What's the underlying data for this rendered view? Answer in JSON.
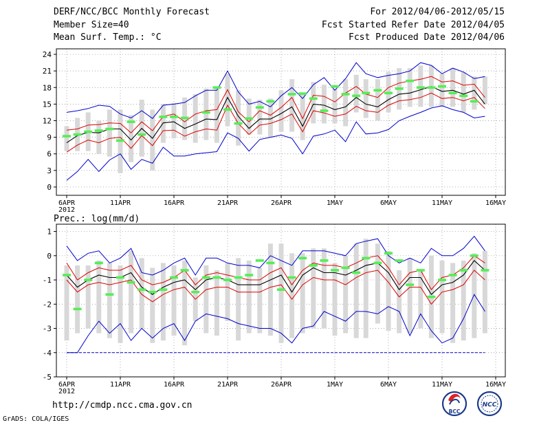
{
  "header": {
    "title": "DERF/NCC/BCC Monthly Forecast",
    "member_size": "Member Size=40",
    "variable_top": "Mean Surf. Temp.: °C",
    "for_range": "For 2012/04/06-2012/05/15",
    "fcst_started": "Fcst Started Refer Date 2012/04/05",
    "fcst_produced": "Fcst Produced Date 2012/04/06"
  },
  "footer": {
    "url": "http://cmdp.ncc.cma.gov.cn",
    "grads_credit": "GrADS: COLA/IGES",
    "logo_left_text": "BCC",
    "logo_right_text": "NCC"
  },
  "colors": {
    "outer": "#0000cc",
    "band": "#dd0000",
    "mean": "#000000",
    "obs": "#55ee55",
    "box": "#d8d8d8",
    "grid": "#888888"
  },
  "chart_data": [
    {
      "type": "line",
      "title": "Mean Surf. Temp.: °C",
      "ylabel": "°C",
      "xlabel": "",
      "x_tick_labels": [
        "6APR",
        "11APR",
        "16APR",
        "21APR",
        "26APR",
        "1MAY",
        "6MAY",
        "11MAY",
        "16MAY"
      ],
      "x_year_label": "2012",
      "x_tick_days": [
        0,
        5,
        10,
        15,
        20,
        25,
        30,
        35,
        40
      ],
      "xlim": [
        0,
        40
      ],
      "ylim": [
        -1.5,
        25
      ],
      "y_ticks": [
        0,
        3,
        6,
        9,
        12,
        15,
        18,
        21,
        24
      ],
      "days": [
        0,
        1,
        2,
        3,
        4,
        5,
        6,
        7,
        8,
        9,
        10,
        11,
        12,
        13,
        14,
        15,
        16,
        17,
        18,
        19,
        20,
        21,
        22,
        23,
        24,
        25,
        26,
        27,
        27.9,
        29,
        30,
        31,
        32,
        33,
        34,
        35,
        36,
        37,
        38,
        39
      ],
      "series": [
        {
          "name": "max",
          "values": [
            13.5,
            13.8,
            14.2,
            14.8,
            14.6,
            13.2,
            12.5,
            13.8,
            12.4,
            14.8,
            15.0,
            15.3,
            16.5,
            17.5,
            17.5,
            21.0,
            17.2,
            15.0,
            15.5,
            14.5,
            16.5,
            18.0,
            16.0,
            18.5,
            19.8,
            17.5,
            19.6,
            22.5,
            20.5,
            19.8,
            20.2,
            20.5,
            21.0,
            22.5,
            22.0,
            20.5,
            21.5,
            20.8,
            19.6,
            20.0
          ]
        },
        {
          "name": "upper",
          "values": [
            10.3,
            10.5,
            11.2,
            11.3,
            11.6,
            11.5,
            9.8,
            11.8,
            10.2,
            12.8,
            13.2,
            11.8,
            13.2,
            13.8,
            14.0,
            17.6,
            13.6,
            11.8,
            13.8,
            13.0,
            14.4,
            16.2,
            12.4,
            16.6,
            16.4,
            15.4,
            17.0,
            18.2,
            16.8,
            16.2,
            18.0,
            18.8,
            19.2,
            19.5,
            20.0,
            19.0,
            19.2,
            18.4,
            18.6,
            16.2
          ]
        },
        {
          "name": "mean",
          "values": [
            8.0,
            9.3,
            9.9,
            9.8,
            10.5,
            10.5,
            8.5,
            10.6,
            8.8,
            11.6,
            11.8,
            10.6,
            11.4,
            12.3,
            12.2,
            16.2,
            12.8,
            10.6,
            12.3,
            12.3,
            13.3,
            14.5,
            11.0,
            15.0,
            14.8,
            14.0,
            14.5,
            16.2,
            15.0,
            14.5,
            15.8,
            16.8,
            17.0,
            17.6,
            18.2,
            17.3,
            17.5,
            16.8,
            17.5,
            15.0
          ]
        },
        {
          "name": "lower",
          "values": [
            6.3,
            7.6,
            8.5,
            8.0,
            8.8,
            9.0,
            7.0,
            9.3,
            7.5,
            10.2,
            10.3,
            9.2,
            10.0,
            10.5,
            10.3,
            14.8,
            11.5,
            9.5,
            11.2,
            11.5,
            12.2,
            13.2,
            10.0,
            13.8,
            13.4,
            12.8,
            13.2,
            14.6,
            13.8,
            13.5,
            14.8,
            15.6,
            15.8,
            16.2,
            17.0,
            16.0,
            16.2,
            15.6,
            16.2,
            14.2
          ]
        },
        {
          "name": "min",
          "values": [
            1.2,
            2.8,
            5.0,
            2.8,
            4.9,
            6.0,
            3.2,
            5.0,
            4.3,
            7.2,
            5.6,
            5.6,
            6.0,
            6.2,
            6.4,
            9.8,
            8.8,
            6.5,
            8.6,
            9.0,
            9.4,
            8.8,
            6.0,
            9.2,
            9.6,
            10.3,
            8.2,
            11.8,
            9.6,
            9.8,
            10.4,
            12.0,
            12.8,
            13.5,
            14.3,
            14.7,
            14.0,
            13.5,
            12.5,
            12.8
          ]
        },
        {
          "name": "box_high",
          "values": [
            11.0,
            12.5,
            13.5,
            12.0,
            14.0,
            14.0,
            13.0,
            15.8,
            14.0,
            15.0,
            15.2,
            16.2,
            16.8,
            17.8,
            18.0,
            20.5,
            17.5,
            16.0,
            15.8,
            16.0,
            17.5,
            19.5,
            17.0,
            19.0,
            18.5,
            17.8,
            19.5,
            20.3,
            19.5,
            19.5,
            20.8,
            21.5,
            21.5,
            22.0,
            22.0,
            20.5,
            21.5,
            20.8,
            20.0,
            20.0
          ]
        },
        {
          "name": "box_low",
          "values": [
            6.5,
            6.5,
            6.5,
            6.0,
            5.5,
            2.5,
            4.5,
            5.5,
            3.0,
            8.0,
            8.8,
            8.5,
            8.0,
            8.5,
            8.0,
            11.0,
            7.5,
            9.5,
            9.5,
            9.0,
            10.0,
            10.0,
            8.5,
            11.5,
            11.5,
            11.5,
            11.0,
            13.5,
            12.5,
            12.0,
            13.5,
            14.0,
            14.5,
            14.5,
            14.5,
            14.5,
            14.5,
            13.5,
            14.0,
            15.0
          ]
        },
        {
          "name": "observed",
          "values": [
            9.2,
            9.5,
            10.0,
            10.2,
            10.5,
            8.4,
            11.8,
            9.5,
            null,
            12.7,
            12.7,
            12.5,
            null,
            13.5,
            18.0,
            14.0,
            11.5,
            12.4,
            14.4,
            15.5,
            null,
            16.8,
            16.9,
            16.0,
            13.8,
            18.2,
            16.8,
            16.5,
            17.0,
            17.5,
            17.0,
            17.8,
            19.2,
            18.0,
            18.0,
            18.2,
            17.0,
            16.5,
            15.5,
            null
          ]
        }
      ]
    },
    {
      "type": "line",
      "title": "Prec.: log(mm/d)",
      "ylabel": "log(mm/d)",
      "xlabel": "",
      "x_tick_labels": [
        "6APR",
        "11APR",
        "16APR",
        "21APR",
        "26APR",
        "1MAY",
        "6MAY",
        "11MAY",
        "16MAY"
      ],
      "x_year_label": "2012",
      "x_tick_days": [
        0,
        5,
        10,
        15,
        20,
        25,
        30,
        35,
        40
      ],
      "xlim": [
        0,
        40
      ],
      "ylim": [
        -5,
        1.3
      ],
      "y_ticks": [
        -5,
        -4,
        -3,
        -2,
        -1,
        0,
        1
      ],
      "days": [
        0,
        1,
        2,
        3,
        4,
        5,
        6,
        7,
        8,
        9,
        10,
        11,
        12,
        13,
        14,
        15,
        16,
        17,
        18,
        19,
        20,
        21,
        22,
        23,
        24,
        25,
        26,
        27,
        27.9,
        29,
        30,
        31,
        32,
        33,
        34,
        35,
        36,
        37,
        38,
        39
      ],
      "series": [
        {
          "name": "max",
          "values": [
            0.4,
            -0.2,
            0.1,
            0.2,
            -0.3,
            -0.1,
            0.3,
            -0.7,
            -0.8,
            -0.6,
            -0.3,
            -0.1,
            -0.8,
            -0.1,
            -0.1,
            -0.3,
            -0.4,
            -0.4,
            -0.5,
            0.0,
            -0.2,
            -0.4,
            0.2,
            0.2,
            0.2,
            0.1,
            0.0,
            0.5,
            0.6,
            0.7,
            0.0,
            -0.3,
            -0.1,
            -0.3,
            0.3,
            0.0,
            0.0,
            0.3,
            0.8,
            0.2
          ]
        },
        {
          "name": "upper",
          "values": [
            -0.3,
            -1.0,
            -0.7,
            -0.5,
            -0.6,
            -0.6,
            -0.4,
            -1.0,
            -1.2,
            -1.1,
            -0.9,
            -0.6,
            -1.2,
            -0.8,
            -0.7,
            -0.8,
            -0.9,
            -1.0,
            -1.0,
            -0.7,
            -0.5,
            -1.2,
            -0.6,
            -0.3,
            -0.4,
            -0.4,
            -0.5,
            -0.3,
            -0.1,
            0.0,
            -0.5,
            -1.2,
            -0.7,
            -0.6,
            -1.4,
            -0.9,
            -0.8,
            -0.5,
            0.0,
            -0.3
          ]
        },
        {
          "name": "mean",
          "values": [
            -0.8,
            -1.3,
            -1.0,
            -0.8,
            -0.9,
            -0.9,
            -0.7,
            -1.3,
            -1.6,
            -1.3,
            -1.1,
            -1.0,
            -1.4,
            -1.0,
            -0.9,
            -1.0,
            -1.2,
            -1.2,
            -1.2,
            -1.0,
            -0.8,
            -1.5,
            -0.8,
            -0.5,
            -0.7,
            -0.7,
            -0.8,
            -0.6,
            -0.4,
            -0.3,
            -0.7,
            -1.4,
            -0.9,
            -0.9,
            -1.6,
            -1.2,
            -1.1,
            -0.8,
            -0.2,
            -0.6
          ]
        },
        {
          "name": "lower",
          "values": [
            -1.0,
            -1.5,
            -1.2,
            -1.1,
            -1.2,
            -1.1,
            -1.0,
            -1.6,
            -1.9,
            -1.6,
            -1.4,
            -1.3,
            -1.8,
            -1.4,
            -1.3,
            -1.3,
            -1.5,
            -1.5,
            -1.5,
            -1.3,
            -1.2,
            -1.8,
            -1.2,
            -0.9,
            -1.0,
            -1.0,
            -1.2,
            -0.9,
            -0.7,
            -0.6,
            -1.1,
            -1.7,
            -1.3,
            -1.3,
            -2.0,
            -1.5,
            -1.4,
            -1.2,
            -0.6,
            -1.0
          ]
        },
        {
          "name": "min",
          "values": [
            -4.0,
            -4.0,
            -3.3,
            -2.7,
            -3.2,
            -2.8,
            -3.5,
            -3.0,
            -3.4,
            -3.0,
            -2.8,
            -3.5,
            -2.7,
            -2.4,
            -2.5,
            -2.6,
            -2.8,
            -2.9,
            -3.0,
            -3.0,
            -3.2,
            -3.6,
            -3.0,
            -2.9,
            -2.3,
            -2.5,
            -2.7,
            -2.3,
            -2.3,
            -2.4,
            -2.1,
            -2.3,
            -3.3,
            -2.4,
            -3.1,
            -3.6,
            -3.4,
            -2.6,
            -1.6,
            -2.3
          ]
        },
        {
          "name": "box_high",
          "values": [
            -0.4,
            -0.4,
            -0.4,
            -0.2,
            -0.3,
            -0.4,
            0.2,
            -0.1,
            -0.5,
            -0.3,
            -0.4,
            -0.2,
            -0.9,
            -0.4,
            -0.6,
            -0.3,
            -0.1,
            -0.2,
            -0.5,
            0.5,
            0.5,
            0.1,
            0.1,
            0.3,
            0.3,
            -0.3,
            0.0,
            0.5,
            0.7,
            0.5,
            0.2,
            -0.6,
            -0.1,
            -0.6,
            0.0,
            -0.2,
            -0.3,
            -0.2,
            0.1,
            0.2
          ]
        },
        {
          "name": "box_low",
          "values": [
            -3.5,
            -3.2,
            -3.0,
            -3.2,
            -3.4,
            -3.6,
            -3.2,
            -3.0,
            -3.6,
            -3.5,
            -3.3,
            -3.7,
            -2.7,
            -3.2,
            -3.3,
            -2.7,
            -3.5,
            -3.2,
            -3.2,
            -3.3,
            -3.6,
            -3.4,
            -3.2,
            -3.0,
            -3.0,
            -3.3,
            -3.2,
            -3.4,
            -3.4,
            -2.8,
            -3.1,
            -3.2,
            -3.2,
            -3.0,
            -3.4,
            -3.2,
            -3.6,
            -3.5,
            -3.4,
            -3.2
          ]
        },
        {
          "name": "observed",
          "values": [
            -0.8,
            -2.2,
            -1.0,
            -0.3,
            -1.6,
            -0.9,
            -1.1,
            -1.4,
            -1.5,
            -1.4,
            -0.9,
            -0.6,
            -1.5,
            -0.9,
            -0.9,
            -1.0,
            -0.9,
            -0.8,
            -0.2,
            -0.3,
            -1.4,
            -0.9,
            -0.1,
            -0.4,
            -0.2,
            -0.6,
            -0.5,
            -0.7,
            -0.1,
            -0.3,
            0.1,
            -0.2,
            -1.2,
            -0.6,
            -1.7,
            -1.0,
            -0.8,
            -0.6,
            0.0,
            -0.6
          ]
        }
      ]
    }
  ]
}
